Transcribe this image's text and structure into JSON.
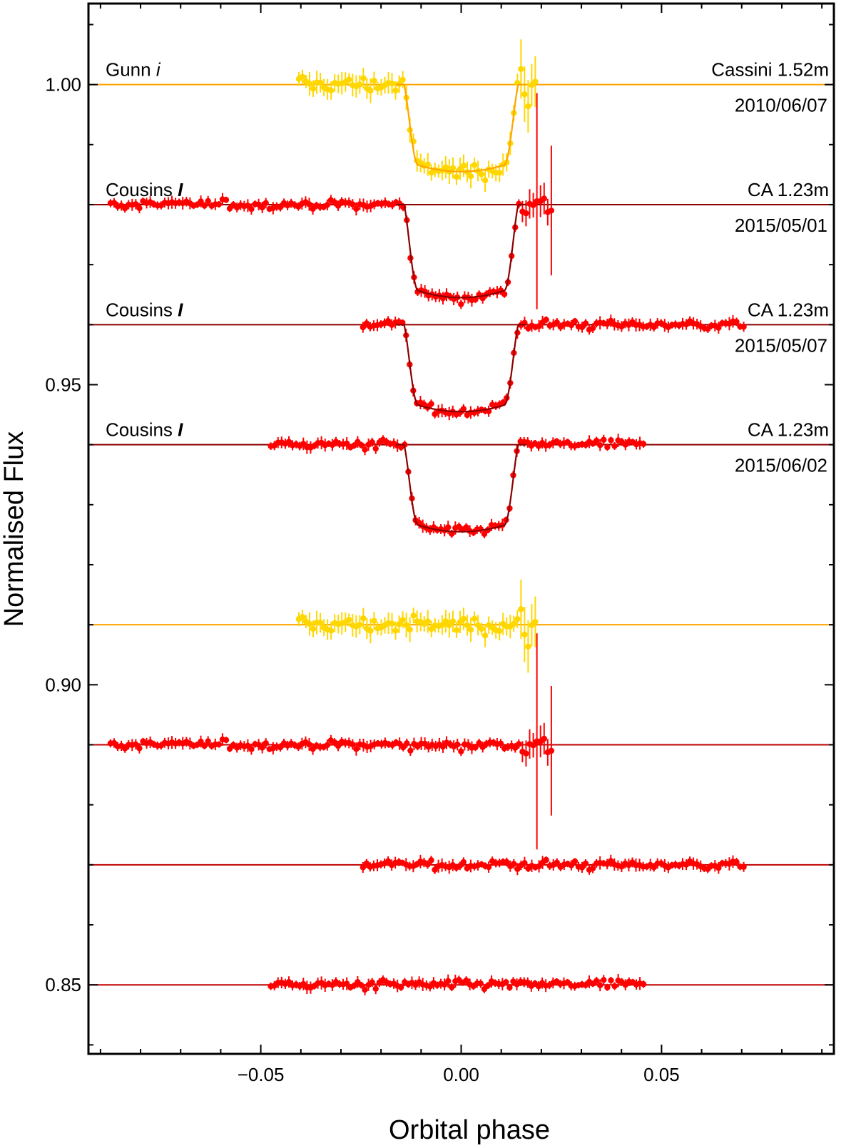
{
  "chart_data": {
    "type": "scatter",
    "xlabel": "Orbital phase",
    "ylabel": "Normalised Flux",
    "xlim": [
      -0.093,
      0.093
    ],
    "ylim": [
      0.8385,
      1.0135
    ],
    "x_ticks": [
      -0.05,
      0.0,
      0.05
    ],
    "x_tick_labels": [
      "−0.05",
      "0.00",
      "0.05"
    ],
    "y_ticks": [
      0.85,
      0.9,
      0.95,
      1.0
    ],
    "y_tick_labels": [
      "0.85",
      "0.90",
      "0.95",
      "1.00"
    ],
    "grid": false,
    "legend": "none",
    "colors": {
      "yellow_points": "#ffd700",
      "yellow_model": "#ffa500",
      "red_points": "#ff0000",
      "red_model": "#8b0000",
      "residual_line_red": "#c00000"
    },
    "transit_model": {
      "t1": 0.0143,
      "t2": 0.0107,
      "depth": "per series (baseline - bottom)"
    },
    "series": [
      {
        "name": "Gunn i",
        "role": "light_curve",
        "baseline": 1.0,
        "bottom": 0.9855,
        "x_range": [
          -0.0405,
          0.0185
        ],
        "point_color": "#ffd700",
        "model_color": "#ffa500",
        "filter_label": "Gunn ",
        "filter_symbol": "i",
        "telescope": "Cassini 1.52m",
        "date": "2010/06/07"
      },
      {
        "name": "Cousins I (2015/05/01)",
        "role": "light_curve",
        "baseline": 0.98,
        "bottom": 0.9645,
        "x_range": [
          -0.0875,
          0.0225
        ],
        "point_color": "#ff0000",
        "model_color": "#8b0000",
        "filter_label": "Cousins ",
        "filter_symbol": "I",
        "telescope": "CA 1.23m",
        "date": "2015/05/01"
      },
      {
        "name": "Cousins I (2015/05/07)",
        "role": "light_curve",
        "baseline": 0.96,
        "bottom": 0.9455,
        "x_range": [
          -0.0245,
          0.0705
        ],
        "point_color": "#ff0000",
        "model_color": "#8b0000",
        "filter_label": "Cousins ",
        "filter_symbol": "I",
        "telescope": "CA 1.23m",
        "date": "2015/05/07"
      },
      {
        "name": "Cousins I (2015/06/02)",
        "role": "light_curve",
        "baseline": 0.94,
        "bottom": 0.9255,
        "x_range": [
          -0.0475,
          0.0455
        ],
        "point_color": "#ff0000",
        "model_color": "#8b0000",
        "filter_label": "Cousins ",
        "filter_symbol": "I",
        "telescope": "CA 1.23m",
        "date": "2015/06/02"
      },
      {
        "name": "Residuals Gunn i",
        "role": "residuals",
        "baseline": 0.91,
        "x_range": [
          -0.0405,
          0.0185
        ],
        "point_color": "#ffd700",
        "model_color": "#ffa500"
      },
      {
        "name": "Residuals 2015/05/01",
        "role": "residuals",
        "baseline": 0.89,
        "x_range": [
          -0.0875,
          0.0225
        ],
        "point_color": "#ff0000",
        "model_color": "#c00000"
      },
      {
        "name": "Residuals 2015/05/07",
        "role": "residuals",
        "baseline": 0.87,
        "x_range": [
          -0.0245,
          0.0705
        ],
        "point_color": "#ff0000",
        "model_color": "#c00000"
      },
      {
        "name": "Residuals 2015/06/02",
        "role": "residuals",
        "baseline": 0.85,
        "x_range": [
          -0.0475,
          0.0455
        ],
        "point_color": "#ff0000",
        "model_color": "#c00000"
      }
    ]
  }
}
